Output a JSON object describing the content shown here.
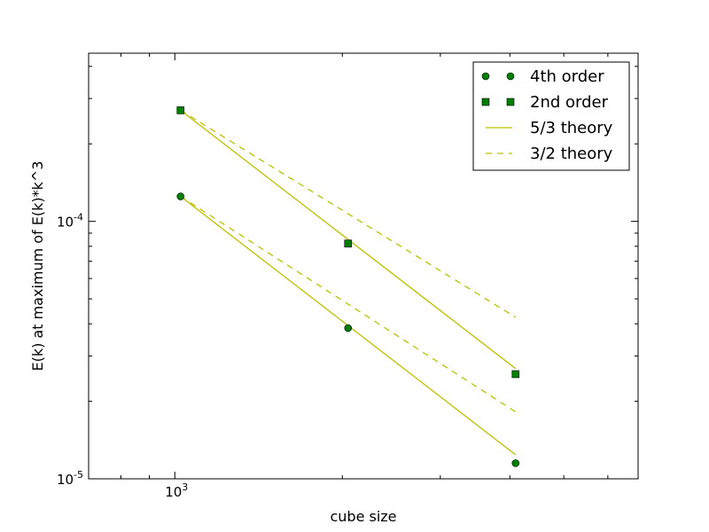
{
  "chart_data": {
    "type": "scatter",
    "xlabel": "cube size",
    "ylabel": "E(k) at maximum of E(k)*k^3",
    "x_scale": "log",
    "y_scale": "log",
    "xlim": [
      700,
      6800
    ],
    "ylim": [
      1e-05,
      0.00045
    ],
    "x_ticks": [
      {
        "value": 1000,
        "base": "10",
        "exp": "3"
      }
    ],
    "y_ticks": [
      {
        "value": 0.0001,
        "base": "10",
        "exp": "-4"
      },
      {
        "value": 1e-05,
        "base": "10",
        "exp": "-5"
      }
    ],
    "grid": false,
    "legend_position": "top-right",
    "series": [
      {
        "name": "4th order",
        "kind": "points",
        "marker": "circle",
        "color": "#007f00",
        "x": [
          1024,
          2048,
          4096
        ],
        "y": [
          0.000125,
          3.85e-05,
          1.15e-05
        ]
      },
      {
        "name": "2nd order",
        "kind": "points",
        "marker": "square",
        "color": "#007f00",
        "x": [
          1024,
          2048,
          4096
        ],
        "y": [
          0.00027,
          8.2e-05,
          2.55e-05
        ]
      },
      {
        "name": "5/3 theory",
        "kind": "line",
        "dash": "solid",
        "color": "#bfbf00",
        "segments": [
          {
            "x": [
              1024,
              4096
            ],
            "y": [
              0.00027,
              2.68e-05
            ]
          },
          {
            "x": [
              1024,
              4096
            ],
            "y": [
              0.000125,
              1.24e-05
            ]
          }
        ]
      },
      {
        "name": "3/2 theory",
        "kind": "line",
        "dash": "dashed",
        "color": "#bfbf00",
        "segments": [
          {
            "x": [
              1024,
              4096
            ],
            "y": [
              0.00027,
              4.24e-05
            ]
          },
          {
            "x": [
              1024,
              4096
            ],
            "y": [
              0.000125,
              1.82e-05
            ]
          }
        ]
      }
    ]
  }
}
